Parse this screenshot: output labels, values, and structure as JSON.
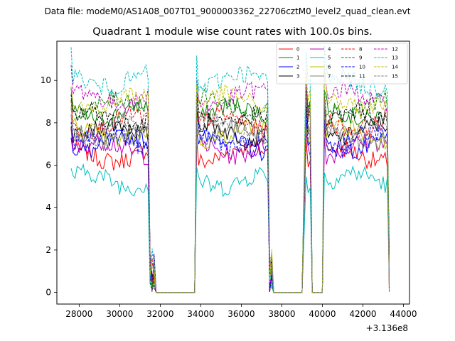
{
  "chart_data": {
    "type": "line",
    "suptitle": "Data file: modeM0/AS1A08_007T01_9000003362_22706cztM0_level2_quad_clean.evt",
    "title": "Quadrant 1 module wise count rates with 100.0s bins.",
    "xlabel": "",
    "ylabel": "",
    "x_offset_label": "+3.136e8",
    "xlim": [
      26900,
      44300
    ],
    "ylim": [
      -0.55,
      11.85
    ],
    "x_ticks": [
      28000,
      30000,
      32000,
      34000,
      36000,
      38000,
      40000,
      42000,
      44000
    ],
    "x_tick_labels": [
      "28000",
      "30000",
      "32000",
      "34000",
      "36000",
      "38000",
      "40000",
      "42000",
      "44000"
    ],
    "y_ticks": [
      0,
      2,
      4,
      6,
      8,
      10
    ],
    "y_tick_labels": [
      "0",
      "2",
      "4",
      "6",
      "8",
      "10"
    ],
    "time_segments": [
      {
        "start": 27600,
        "end": 31400,
        "state": "on"
      },
      {
        "start": 31500,
        "end": 31700,
        "state": "drop"
      },
      {
        "start": 31700,
        "end": 33700,
        "state": "zero"
      },
      {
        "start": 33800,
        "end": 37300,
        "state": "on"
      },
      {
        "start": 37400,
        "end": 37500,
        "state": "drop"
      },
      {
        "start": 37500,
        "end": 39000,
        "state": "zero"
      },
      {
        "start": 39200,
        "end": 39400,
        "state": "on"
      },
      {
        "start": 39500,
        "end": 40000,
        "state": "zero"
      },
      {
        "start": 40100,
        "end": 43200,
        "state": "on"
      },
      {
        "start": 43300,
        "end": 43300,
        "state": "drop"
      }
    ],
    "series": [
      {
        "name": "0",
        "color": "#ff0000",
        "dash": "solid",
        "level": 6.5
      },
      {
        "name": "1",
        "color": "#008000",
        "dash": "solid",
        "level": 8.5
      },
      {
        "name": "2",
        "color": "#0000ff",
        "dash": "solid",
        "level": 7.0
      },
      {
        "name": "3",
        "color": "#000000",
        "dash": "solid",
        "level": 7.6
      },
      {
        "name": "4",
        "color": "#bf00bf",
        "dash": "solid",
        "level": 6.8
      },
      {
        "name": "5",
        "color": "#00bfbf",
        "dash": "solid",
        "level": 5.3
      },
      {
        "name": "6",
        "color": "#bfbf00",
        "dash": "solid",
        "level": 7.5
      },
      {
        "name": "7",
        "color": "#808080",
        "dash": "solid",
        "level": 7.4
      },
      {
        "name": "8",
        "color": "#ff0000",
        "dash": "dashed",
        "level": 8.0
      },
      {
        "name": "9",
        "color": "#008000",
        "dash": "dashed",
        "level": 8.8
      },
      {
        "name": "10",
        "color": "#0000ff",
        "dash": "dashed",
        "level": 7.2
      },
      {
        "name": "11",
        "color": "#000000",
        "dash": "dashed",
        "level": 8.2
      },
      {
        "name": "12",
        "color": "#bf00bf",
        "dash": "dashed",
        "level": 9.2
      },
      {
        "name": "13",
        "color": "#00bfbf",
        "dash": "dashed",
        "level": 10.0
      },
      {
        "name": "14",
        "color": "#bfbf00",
        "dash": "dashed",
        "level": 9.0
      },
      {
        "name": "15",
        "color": "#808080",
        "dash": "dashed",
        "level": 7.8
      }
    ]
  }
}
